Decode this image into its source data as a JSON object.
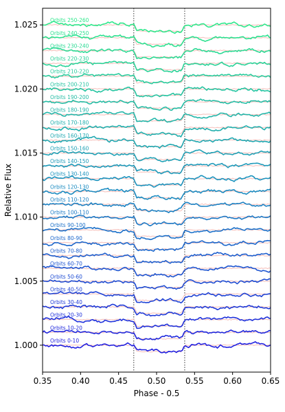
{
  "chart_data": {
    "type": "line",
    "title": "",
    "xlabel": "Phase - 0.5",
    "ylabel": "Relative Flux",
    "xlim": [
      0.35,
      0.65
    ],
    "ylim": [
      0.9979,
      1.0263
    ],
    "x_ticks": [
      "0.35",
      "0.40",
      "0.45",
      "0.50",
      "0.55",
      "0.60",
      "0.65"
    ],
    "y_ticks": [
      "1.000",
      "1.005",
      "1.010",
      "1.015",
      "1.020",
      "1.025"
    ],
    "grid": false,
    "legend": "none",
    "vertical_markers": [
      0.47,
      0.537
    ],
    "marker_style": "dotted",
    "transit": {
      "start": 0.47,
      "end": 0.537,
      "depth": 0.0005
    },
    "offset_per_series": 0.001,
    "model_color": "#f4b6b0",
    "series_labels": [
      "Orbits 0-10",
      "Orbits 10-20",
      "Orbits 20-30",
      "Orbits 30-40",
      "Orbits 40-50",
      "Orbits 50-60",
      "Orbits 60-70",
      "Orbits 70-80",
      "Orbits 80-90",
      "Orbits 90-100",
      "Orbits 100-110",
      "Orbits 110-120",
      "Orbits 120-130",
      "Orbits 130-140",
      "Orbits 140-150",
      "Orbits 150-160",
      "Orbits 160-170",
      "Orbits 170-180",
      "Orbits 180-190",
      "Orbits 190-200",
      "Orbits 200-210",
      "Orbits 210-220",
      "Orbits 220-230",
      "Orbits 230-240",
      "Orbits 240-250",
      "Orbits 250-260"
    ],
    "series_baselines": [
      1.0,
      1.001,
      1.002,
      1.003,
      1.004,
      1.005,
      1.006,
      1.007,
      1.008,
      1.009,
      1.01,
      1.011,
      1.012,
      1.013,
      1.014,
      1.015,
      1.016,
      1.017,
      1.018,
      1.019,
      1.02,
      1.021,
      1.022,
      1.023,
      1.024,
      1.025
    ],
    "color_scale": [
      "#1f1fe0",
      "#1a8fc0",
      "#2ee88c"
    ]
  }
}
